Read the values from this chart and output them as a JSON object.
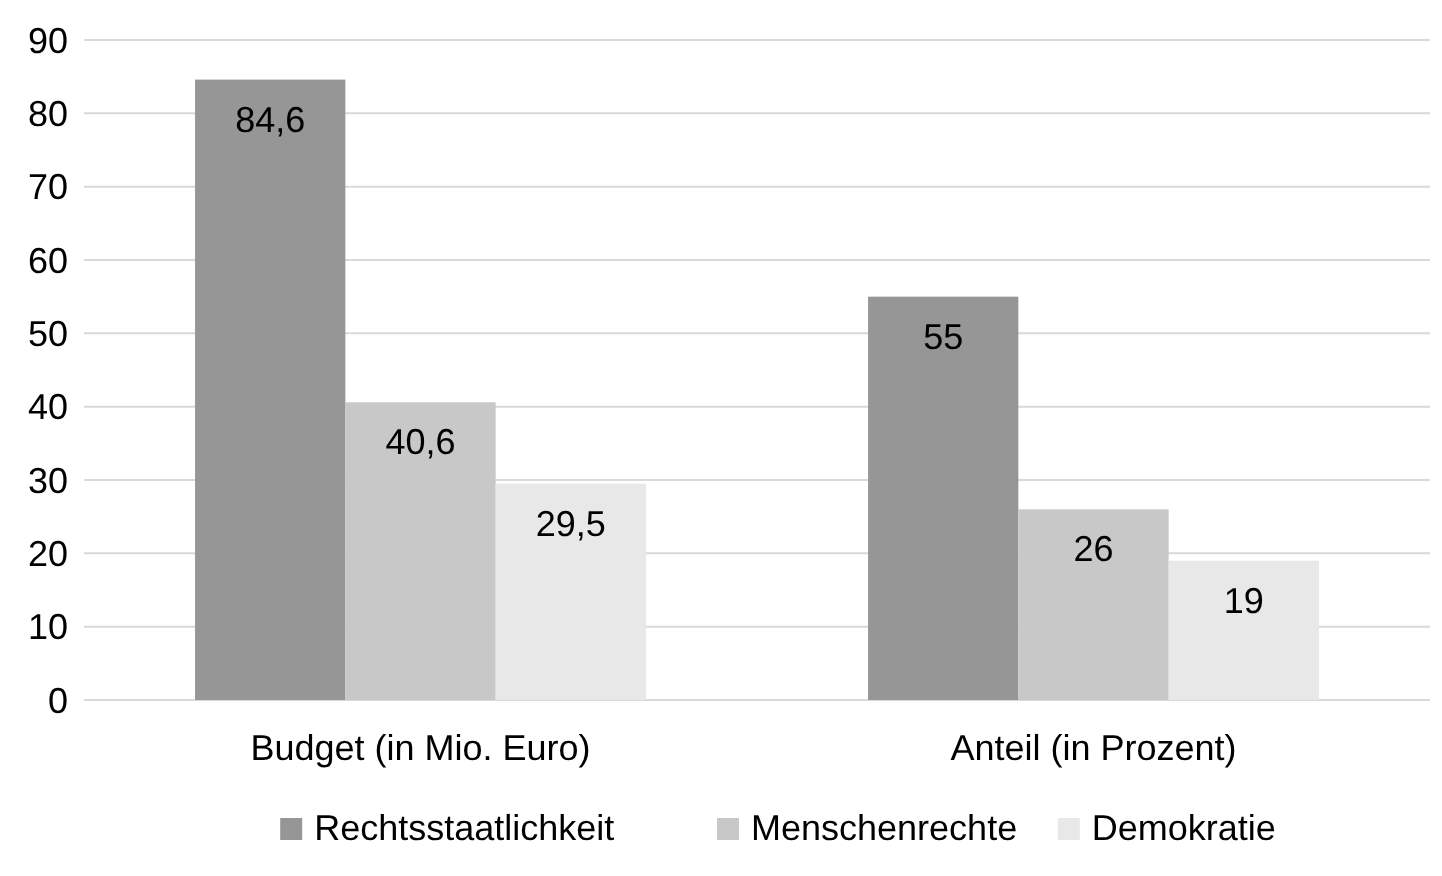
{
  "chart_data": {
    "type": "bar",
    "categories": [
      "Budget (in Mio. Euro)",
      "Anteil (in Prozent)"
    ],
    "series": [
      {
        "name": "Rechtsstaatlichkeit",
        "color": "#969696",
        "values": [
          84.6,
          55
        ],
        "value_labels": [
          "84,6",
          "55"
        ]
      },
      {
        "name": "Menschenrechte",
        "color": "#c8c8c8",
        "values": [
          40.6,
          26
        ],
        "value_labels": [
          "40,6",
          "26"
        ]
      },
      {
        "name": "Demokratie",
        "color": "#e8e8e8",
        "values": [
          29.5,
          19
        ],
        "value_labels": [
          "29,5",
          "19"
        ]
      }
    ],
    "ylim": [
      0,
      90
    ],
    "yticks": [
      0,
      10,
      20,
      30,
      40,
      50,
      60,
      70,
      80,
      90
    ],
    "grid": "y",
    "legend": "bottom"
  }
}
